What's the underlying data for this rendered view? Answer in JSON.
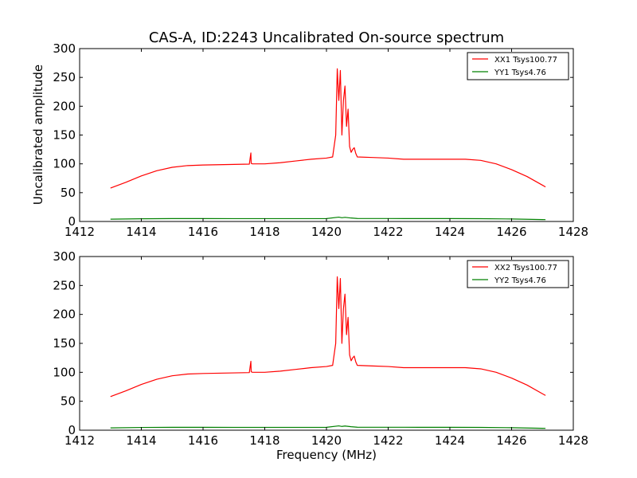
{
  "chart_data": [
    {
      "type": "line",
      "title": "CAS-A, ID:2243 Uncalibrated On-source spectrum",
      "xlabel": "",
      "ylabel": "Uncalibrated amplitude",
      "xlim": [
        1412,
        1428
      ],
      "ylim": [
        0,
        300
      ],
      "xticks": [
        "1412",
        "1414",
        "1416",
        "1418",
        "1420",
        "1422",
        "1424",
        "1426",
        "1428"
      ],
      "yticks": [
        "0",
        "50",
        "100",
        "150",
        "200",
        "250",
        "300"
      ],
      "grid": false,
      "legend_position": "top-right",
      "series": [
        {
          "name": "XX1 Tsys100.77",
          "color": "#ff0000",
          "x": [
            1413.0,
            1413.5,
            1414.0,
            1414.5,
            1415.0,
            1415.5,
            1416.0,
            1416.5,
            1417.0,
            1417.5,
            1417.55,
            1417.56,
            1417.6,
            1418.0,
            1418.5,
            1419.0,
            1419.5,
            1420.0,
            1420.2,
            1420.3,
            1420.35,
            1420.4,
            1420.45,
            1420.5,
            1420.55,
            1420.6,
            1420.65,
            1420.7,
            1420.75,
            1420.8,
            1420.85,
            1420.9,
            1420.95,
            1421.0,
            1421.5,
            1422.0,
            1422.5,
            1423.0,
            1423.5,
            1424.0,
            1424.5,
            1425.0,
            1425.5,
            1426.0,
            1426.5,
            1427.0,
            1427.1
          ],
          "y": [
            58,
            68,
            79,
            88,
            94,
            97,
            98,
            98.5,
            99,
            99.5,
            119,
            101,
            100,
            100,
            102,
            105,
            108,
            110,
            112,
            150,
            265,
            210,
            262,
            150,
            210,
            235,
            165,
            195,
            130,
            120,
            125,
            128,
            118,
            112,
            111,
            110,
            108,
            108,
            108,
            108,
            108,
            106,
            100,
            90,
            78,
            63,
            60
          ]
        },
        {
          "name": "YY1 Tsys4.76",
          "color": "#008000",
          "x": [
            1413.0,
            1414.0,
            1415.0,
            1416.0,
            1417.0,
            1418.0,
            1419.0,
            1420.0,
            1420.4,
            1420.5,
            1420.6,
            1420.8,
            1421.0,
            1422.0,
            1423.0,
            1424.0,
            1425.0,
            1426.0,
            1427.0,
            1427.1
          ],
          "y": [
            4,
            4.7,
            5,
            5,
            4.9,
            4.9,
            4.9,
            5,
            7.5,
            6.5,
            7.2,
            6,
            5.2,
            5.1,
            5,
            5,
            4.8,
            4.3,
            3.3,
            3.2
          ]
        }
      ]
    },
    {
      "type": "line",
      "title": "",
      "xlabel": "Frequency (MHz)",
      "ylabel": "",
      "xlim": [
        1412,
        1428
      ],
      "ylim": [
        0,
        300
      ],
      "xticks": [
        "1412",
        "1414",
        "1416",
        "1418",
        "1420",
        "1422",
        "1424",
        "1426",
        "1428"
      ],
      "yticks": [
        "0",
        "50",
        "100",
        "150",
        "200",
        "250",
        "300"
      ],
      "grid": false,
      "legend_position": "top-right",
      "series": [
        {
          "name": "XX2 Tsys100.77",
          "color": "#ff0000",
          "x": [
            1413.0,
            1413.5,
            1414.0,
            1414.5,
            1415.0,
            1415.5,
            1416.0,
            1416.5,
            1417.0,
            1417.5,
            1417.55,
            1417.56,
            1417.6,
            1418.0,
            1418.5,
            1419.0,
            1419.5,
            1420.0,
            1420.2,
            1420.3,
            1420.35,
            1420.4,
            1420.45,
            1420.5,
            1420.55,
            1420.6,
            1420.65,
            1420.7,
            1420.75,
            1420.8,
            1420.85,
            1420.9,
            1420.95,
            1421.0,
            1421.5,
            1422.0,
            1422.5,
            1423.0,
            1423.5,
            1424.0,
            1424.5,
            1425.0,
            1425.5,
            1426.0,
            1426.5,
            1427.0,
            1427.1
          ],
          "y": [
            58,
            68,
            79,
            88,
            94,
            97,
            98,
            98.5,
            99,
            99.5,
            119,
            101,
            100,
            100,
            102,
            105,
            108,
            110,
            112,
            150,
            265,
            210,
            262,
            150,
            210,
            235,
            165,
            195,
            130,
            120,
            125,
            128,
            118,
            112,
            111,
            110,
            108,
            108,
            108,
            108,
            108,
            106,
            100,
            90,
            78,
            63,
            60
          ]
        },
        {
          "name": "YY2 Tsys4.76",
          "color": "#008000",
          "x": [
            1413.0,
            1414.0,
            1415.0,
            1416.0,
            1417.0,
            1418.0,
            1419.0,
            1420.0,
            1420.4,
            1420.5,
            1420.6,
            1420.8,
            1421.0,
            1422.0,
            1423.0,
            1424.0,
            1425.0,
            1426.0,
            1427.0,
            1427.1
          ],
          "y": [
            4,
            4.7,
            5,
            5,
            4.9,
            4.9,
            4.9,
            5,
            7.5,
            6.5,
            7.2,
            6,
            5.2,
            5.1,
            5,
            5,
            4.8,
            4.3,
            3.3,
            3.2
          ]
        }
      ]
    }
  ]
}
